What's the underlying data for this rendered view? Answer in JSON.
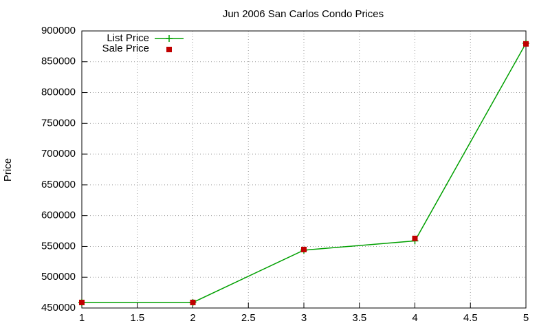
{
  "chart_data": {
    "type": "line",
    "title": "Jun 2006 San Carlos Condo Prices",
    "y_label": "Price",
    "x": [
      1,
      2,
      3,
      4,
      5
    ],
    "series": [
      {
        "name": "List Price",
        "color": "#00a000",
        "mode": "linespoints",
        "values": [
          459000,
          459000,
          544000,
          559000,
          880000
        ]
      },
      {
        "name": "Sale Price",
        "color": "#c00000",
        "mode": "points",
        "values": [
          459000,
          459000,
          545000,
          563000,
          879000
        ]
      }
    ],
    "xlim": [
      1,
      5
    ],
    "xticks": [
      1,
      1.5,
      2,
      2.5,
      3,
      3.5,
      4,
      4.5,
      5
    ],
    "ylim": [
      450000,
      900000
    ],
    "yticks": [
      450000,
      500000,
      550000,
      600000,
      650000,
      700000,
      750000,
      800000,
      850000,
      900000
    ],
    "grid": true,
    "legend": "top-left"
  }
}
